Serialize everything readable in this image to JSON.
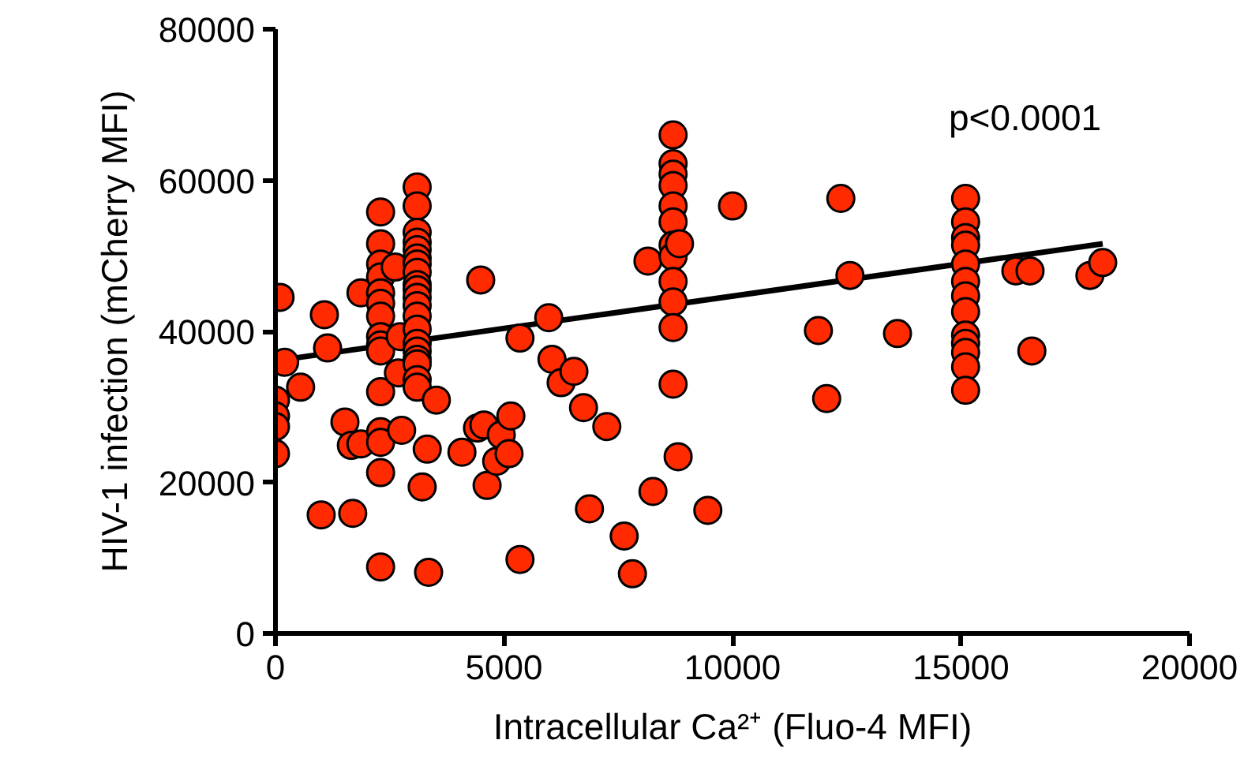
{
  "chart_data": {
    "type": "scatter",
    "xlabel": "Intracellular Ca²⁺ (Fluo-4 MFI)",
    "ylabel": "HIV-1 infection (mCherry MFI)",
    "annotations": [
      "p<0.0001"
    ],
    "xlim": [
      0,
      20000
    ],
    "xticks": [
      0,
      5000,
      10000,
      15000,
      20000
    ],
    "ylim": [
      0,
      80000
    ],
    "yticks": [
      0,
      20000,
      40000,
      60000,
      80000
    ],
    "grid": false,
    "marker": "circle",
    "series": [
      {
        "color": "#ff2a00",
        "x": [
          0,
          0,
          0,
          0,
          100,
          200,
          550,
          1000,
          1070,
          1140,
          1520,
          1660,
          1690,
          1870,
          1870,
          2300,
          2300,
          2300,
          2300,
          2300,
          2300,
          2300,
          2300,
          2300,
          2300,
          2300,
          2300,
          2300,
          2300,
          2300,
          2620,
          2690,
          2730,
          2760,
          3100,
          3100,
          3100,
          3100,
          3100,
          3100,
          3100,
          3100,
          3100,
          3100,
          3100,
          3100,
          3100,
          3100,
          3100,
          3100,
          3100,
          3100,
          3100,
          3100,
          3210,
          3320,
          3350,
          3520,
          4080,
          4420,
          4490,
          4560,
          4630,
          4840,
          4940,
          5110,
          5150,
          5350,
          5350,
          5980,
          6050,
          6250,
          6530,
          6740,
          6870,
          7250,
          7630,
          7810,
          8150,
          8260,
          8700,
          8700,
          8700,
          8700,
          8700,
          8700,
          8700,
          8700,
          8700,
          8700,
          8700,
          8700,
          8810,
          8840,
          9460,
          10000,
          11880,
          12060,
          12370,
          12570,
          13610,
          15100,
          15100,
          15100,
          15100,
          15100,
          15100,
          15100,
          15100,
          15100,
          15100,
          15100,
          15100,
          15100,
          16200,
          16510,
          16550,
          17820,
          18100
        ],
        "values": [
          30900,
          28800,
          27400,
          23800,
          44500,
          35900,
          32600,
          15700,
          42200,
          37800,
          28000,
          24900,
          15900,
          25100,
          45100,
          55800,
          51600,
          48900,
          47200,
          45100,
          43700,
          42000,
          39300,
          38200,
          37400,
          32000,
          26700,
          25300,
          21300,
          8800,
          48500,
          34500,
          39300,
          26900,
          59100,
          56600,
          53100,
          51800,
          50800,
          49700,
          48900,
          47800,
          46200,
          45500,
          44500,
          43400,
          42000,
          40300,
          38400,
          37400,
          36300,
          35700,
          33600,
          32600,
          19400,
          24400,
          8100,
          30900,
          24000,
          27200,
          46800,
          27600,
          19600,
          22800,
          26300,
          23800,
          28800,
          39100,
          9800,
          41800,
          36300,
          33200,
          34700,
          29900,
          16500,
          27400,
          12900,
          7900,
          49300,
          18800,
          66000,
          62200,
          60800,
          59300,
          56600,
          54500,
          51400,
          49900,
          46600,
          43900,
          40500,
          33000,
          23400,
          51600,
          16300,
          56600,
          40100,
          31100,
          57600,
          47400,
          39700,
          57600,
          54500,
          52400,
          51400,
          48900,
          46600,
          44700,
          42600,
          39500,
          38400,
          37200,
          35300,
          32200,
          48000,
          48000,
          37400,
          47400,
          49100
        ]
      },
      {
        "type": "line",
        "color": "#000000",
        "marker": "none",
        "x": [
          0,
          18100
        ],
        "values": [
          36100,
          51600
        ]
      }
    ]
  }
}
